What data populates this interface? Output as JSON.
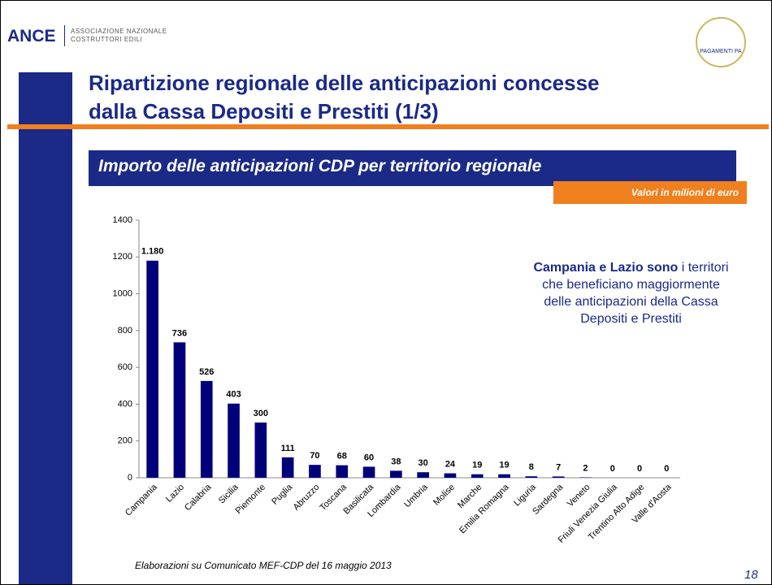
{
  "header": {
    "logo": "ANCE",
    "association": [
      "ASSOCIAZIONE NAZIONALE",
      "COSTRUTTORI EDILI"
    ],
    "badge": "PAGAMENTI PA"
  },
  "title": [
    "Ripartizione regionale delle anticipazioni concesse",
    "dalla Cassa Depositi e Prestiti (1/3)"
  ],
  "banner": "Importo delle anticipazioni CDP per territorio regionale",
  "unit_note": "Valori in milioni di euro",
  "note": {
    "bold": "Campania e Lazio sono",
    "text": "i territori che beneficiano maggiormente delle anticipazioni della Cassa Depositi e Prestiti"
  },
  "source": "Elaborazioni su Comunicato MEF-CDP del 16 maggio 2013",
  "page_number": "18",
  "chart_data": {
    "type": "bar",
    "categories": [
      "Campania",
      "Lazio",
      "Calabria",
      "Sicilia",
      "Piemonte",
      "Puglia",
      "Abruzzo",
      "Toscana",
      "Basilicata",
      "Lombardia",
      "Umbria",
      "Molise",
      "Marche",
      "Emilia Romagna",
      "Liguria",
      "Sardegna",
      "Veneto",
      "Friuli Venezia Giulia",
      "Trentino Alto Adige",
      "Valle d'Aosta"
    ],
    "values": [
      1180,
      736,
      526,
      403,
      300,
      111,
      70,
      68,
      60,
      38,
      30,
      24,
      19,
      19,
      8,
      7,
      2,
      0,
      0,
      0
    ],
    "value_labels": [
      "1.180",
      "736",
      "526",
      "403",
      "300",
      "111",
      "70",
      "68",
      "60",
      "38",
      "30",
      "24",
      "19",
      "19",
      "8",
      "7",
      "2",
      "0",
      "0",
      "0"
    ],
    "color": "#00007a",
    "ylim": [
      0,
      1400
    ],
    "yticks": [
      0,
      200,
      400,
      600,
      800,
      1000,
      1200,
      1400
    ],
    "grid": false
  }
}
